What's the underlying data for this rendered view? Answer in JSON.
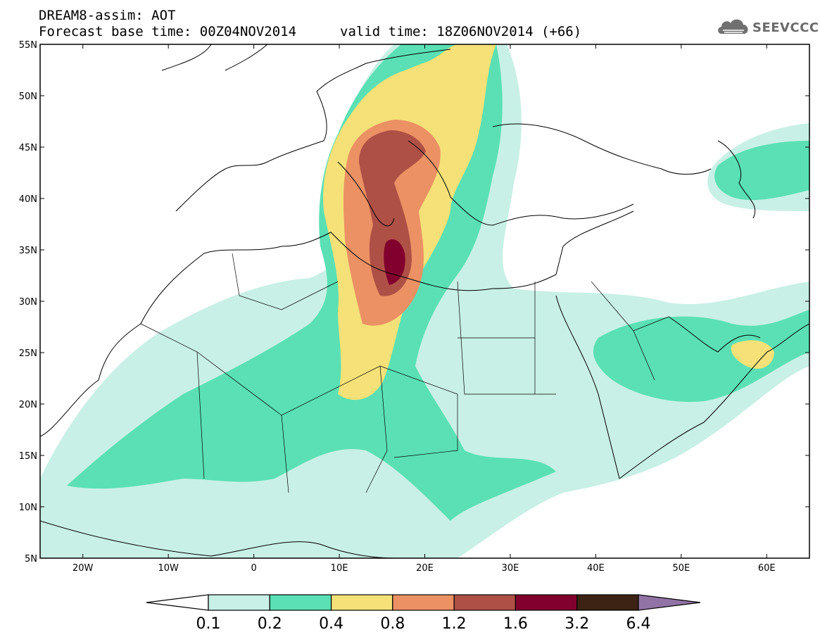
{
  "header": {
    "title_line1": "DREAM8-assim: AOT",
    "title_line2": "Forecast base time: 00Z04NOV2014",
    "valid_text": "valid time: 18Z06NOV2014 (+66)"
  },
  "logo": {
    "text": "SEEVCCC",
    "icon": "cloud-logo-icon"
  },
  "map": {
    "lat_labels": [
      "55N",
      "50N",
      "45N",
      "40N",
      "35N",
      "30N",
      "25N",
      "20N",
      "15N",
      "10N",
      "5N"
    ],
    "lon_labels": [
      "20W",
      "10W",
      "0",
      "10E",
      "20E",
      "30E",
      "40E",
      "50E",
      "60E"
    ],
    "lon_range": [
      -25,
      65
    ],
    "lat_range": [
      5,
      55
    ]
  },
  "colorbar": {
    "labels": [
      "0.1",
      "0.2",
      "0.4",
      "0.8",
      "1.2",
      "1.6",
      "3.2",
      "6.4"
    ],
    "colors": [
      "#ffffff",
      "#c8f0e6",
      "#5ae0b4",
      "#f5e178",
      "#eb9164",
      "#af5046",
      "#82002d",
      "#3c2314",
      "#9173a5"
    ]
  }
}
